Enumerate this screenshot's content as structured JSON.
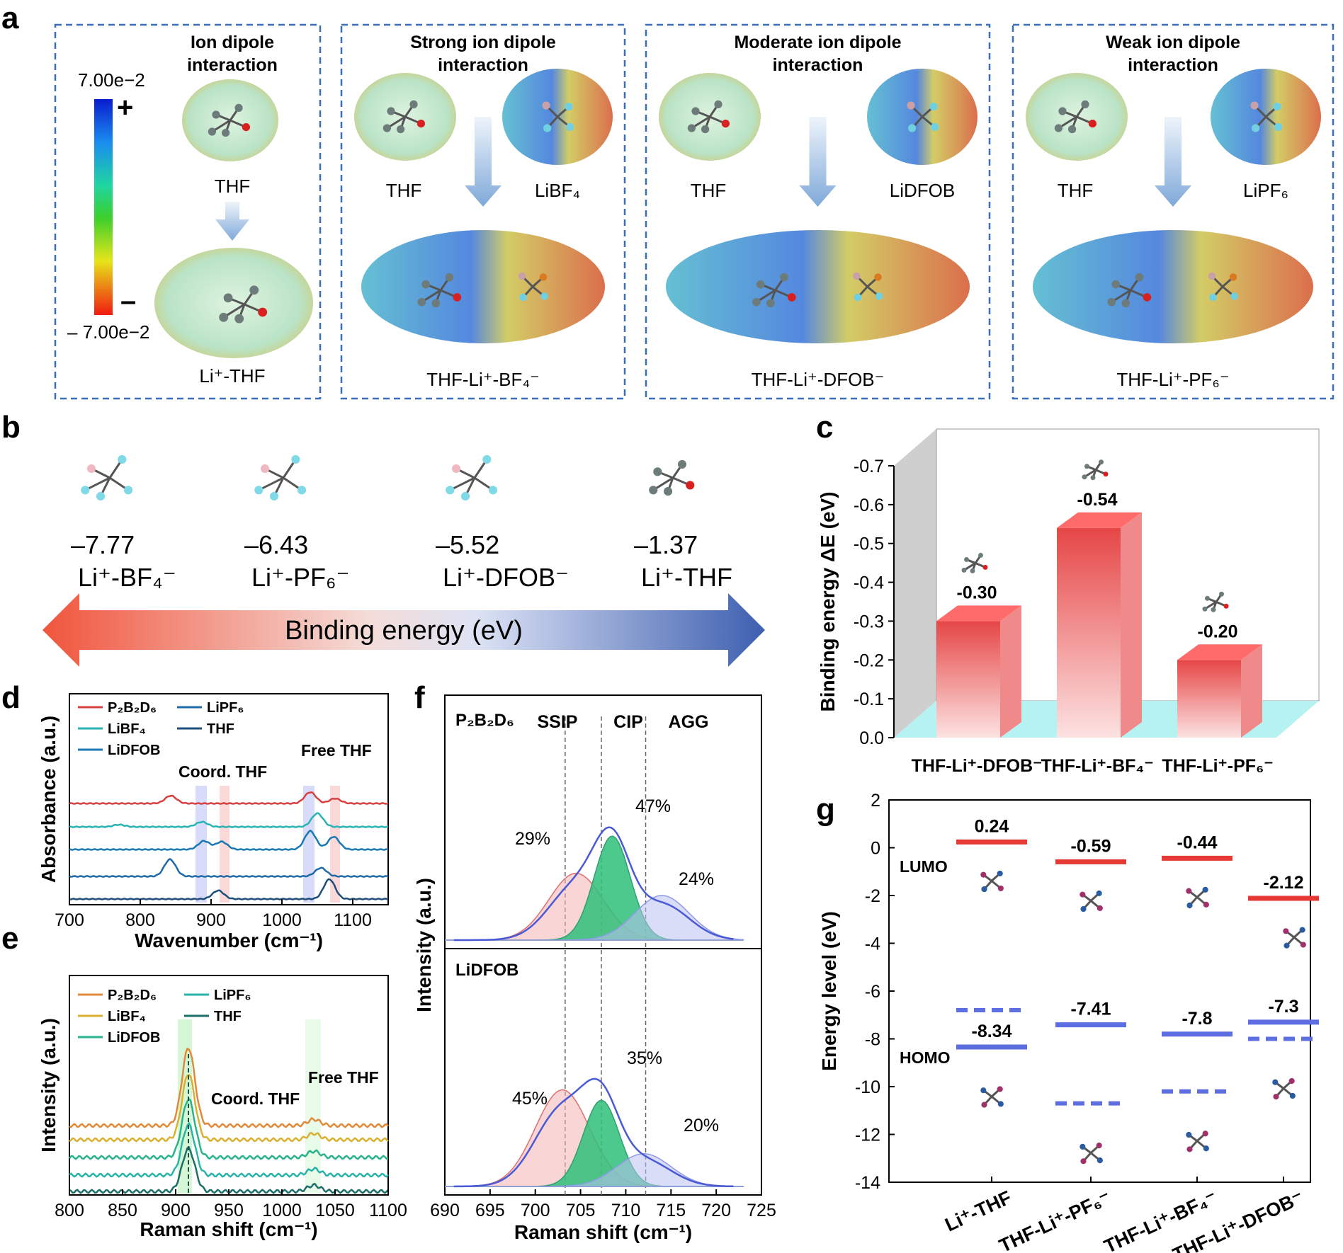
{
  "panel_labels": {
    "a": "a",
    "b": "b",
    "c": "c",
    "d": "d",
    "e": "e",
    "f": "f",
    "g": "g"
  },
  "panel_a": {
    "colorbar": {
      "max": "7.00e−2",
      "min": "– 7.00e−2",
      "plus": "+",
      "minus": "–"
    },
    "boxes": [
      {
        "title1": "Ion dipole",
        "title2": "interaction",
        "left": "THF",
        "right": "",
        "product": "Li⁺-THF"
      },
      {
        "title1": "Strong ion dipole",
        "title2": "interaction",
        "left": "THF",
        "right": "LiBF₄",
        "product": "THF-Li⁺-BF₄⁻"
      },
      {
        "title1": "Moderate ion dipole",
        "title2": "interaction",
        "left": "THF",
        "right": "LiDFOB",
        "product": "THF-Li⁺-DFOB⁻"
      },
      {
        "title1": "Weak ion dipole",
        "title2": "interaction",
        "left": "THF",
        "right": "LiPF₆",
        "product": "THF-Li⁺-PF₆⁻"
      }
    ]
  },
  "panel_b": {
    "items": [
      {
        "value": "–7.77",
        "label": "Li⁺-BF₄⁻"
      },
      {
        "value": "–6.43",
        "label": "Li⁺-PF₆⁻"
      },
      {
        "value": "–5.52",
        "label": "Li⁺-DFOB⁻"
      },
      {
        "value": "–1.37",
        "label": "Li⁺-THF"
      }
    ],
    "arrow_label": "Binding energy (eV)"
  },
  "chart_data": [
    {
      "id": "c",
      "type": "bar",
      "ylabel": "Binding energy ΔE (eV)",
      "categories": [
        "THF-Li⁺-DFOB⁻",
        "THF-Li⁺-BF₄⁻",
        "THF-Li⁺-PF₆⁻"
      ],
      "values": [
        -0.3,
        -0.54,
        -0.2
      ],
      "value_labels": [
        "-0.30",
        "-0.54",
        "-0.20"
      ],
      "yticks": [
        "0.0",
        "-0.1",
        "-0.2",
        "-0.3",
        "-0.4",
        "-0.5",
        "-0.6",
        "-0.7"
      ],
      "ylim": [
        0,
        -0.7
      ]
    },
    {
      "id": "d",
      "type": "line",
      "xlabel": "Wavenumber (cm⁻¹)",
      "ylabel": "Absorbance (a.u.)",
      "xlim": [
        700,
        1150
      ],
      "xticks": [
        "700",
        "800",
        "900",
        "1000",
        "1100"
      ],
      "series": [
        {
          "name": "P₂B₂D₆",
          "color": "#d94040",
          "peaks": [
            [
              843,
              0.55
            ],
            [
              1040,
              0.8
            ],
            [
              1075,
              0.35
            ]
          ]
        },
        {
          "name": "LiBF₄",
          "color": "#2ab3b3",
          "peaks": [
            [
              770,
              0.15
            ],
            [
              887,
              0.35
            ],
            [
              1050,
              0.95
            ]
          ]
        },
        {
          "name": "LiDFOB",
          "color": "#1a78b4",
          "peaks": [
            [
              890,
              0.6
            ],
            [
              915,
              0.55
            ],
            [
              1040,
              1.3
            ],
            [
              1073,
              0.9
            ]
          ]
        },
        {
          "name": "LiPF₆",
          "color": "#1f6aa8",
          "peaks": [
            [
              842,
              1.2
            ],
            [
              1055,
              0.6
            ]
          ]
        },
        {
          "name": "THF",
          "color": "#1d4f7a",
          "peaks": [
            [
              910,
              0.6
            ],
            [
              1067,
              1.4
            ]
          ]
        }
      ],
      "annotations": [
        "Coord. THF",
        "Free THF"
      ]
    },
    {
      "id": "e",
      "type": "line",
      "xlabel": "Raman shift (cm⁻¹)",
      "ylabel": "Intensity (a.u.)",
      "xlim": [
        800,
        1100
      ],
      "xticks": [
        "800",
        "850",
        "900",
        "950",
        "1000",
        "1050",
        "1100"
      ],
      "series": [
        {
          "name": "P₂B₂D₆",
          "color": "#e08a3a"
        },
        {
          "name": "LiBF₄",
          "color": "#d9b030"
        },
        {
          "name": "LiDFOB",
          "color": "#2ab38a"
        },
        {
          "name": "LiPF₆",
          "color": "#2ab3a8"
        },
        {
          "name": "THF",
          "color": "#1d6f6a"
        }
      ],
      "annotations": [
        "Coord. THF",
        "Free THF"
      ]
    },
    {
      "id": "f",
      "type": "line",
      "xlabel": "Raman shift (cm⁻¹)",
      "ylabel": "Intensity (a.u.)",
      "xlim": [
        690,
        725
      ],
      "xticks": [
        "690",
        "695",
        "700",
        "705",
        "710",
        "715",
        "720",
        "725"
      ],
      "headers": [
        "SSIP",
        "CIP",
        "AGG"
      ],
      "subpanels": [
        {
          "name": "P₂B₂D₆",
          "components": [
            {
              "label": "SSIP",
              "pct": "29%",
              "center": 704.5,
              "height": 0.45
            },
            {
              "label": "CIP",
              "pct": "47%",
              "center": 708.5,
              "height": 0.7
            },
            {
              "label": "AGG",
              "pct": "24%",
              "center": 714,
              "height": 0.3
            }
          ]
        },
        {
          "name": "LiDFOB",
          "components": [
            {
              "label": "SSIP",
              "pct": "45%",
              "center": 703,
              "height": 0.65
            },
            {
              "label": "CIP",
              "pct": "35%",
              "center": 707.3,
              "height": 0.58
            },
            {
              "label": "AGG",
              "pct": "20%",
              "center": 712,
              "height": 0.22
            }
          ]
        }
      ]
    },
    {
      "id": "g",
      "type": "line",
      "ylabel": "Energy level (eV)",
      "ylim": [
        -14,
        2
      ],
      "yticks": [
        "2",
        "0",
        "-2",
        "-4",
        "-6",
        "-8",
        "-10",
        "-12",
        "-14"
      ],
      "categories": [
        "Li⁺-THF",
        "THF-Li⁺-PF₆⁻",
        "THF-Li⁺-BF₄⁻",
        "THF-Li⁺-DFOB⁻"
      ],
      "lumo": [
        0.24,
        -0.59,
        -0.44,
        -2.12
      ],
      "lumo_labels": [
        "0.24",
        "-0.59",
        "-0.44",
        "-2.12"
      ],
      "homo": [
        -8.34,
        -7.41,
        -7.8,
        -7.3
      ],
      "homo_labels": [
        "-8.34",
        "-7.41",
        "-7.8",
        "-7.3"
      ],
      "homo_dashed": [
        -6.8,
        -10.7,
        -10.2,
        -8.0
      ],
      "lumo_label": "LUMO",
      "homo_label": "HOMO"
    }
  ],
  "colors": {
    "red": "#e53935",
    "blue": "#5c6ee0",
    "boxBorder": "#3a6fb5",
    "green": "#1e8c5a"
  }
}
